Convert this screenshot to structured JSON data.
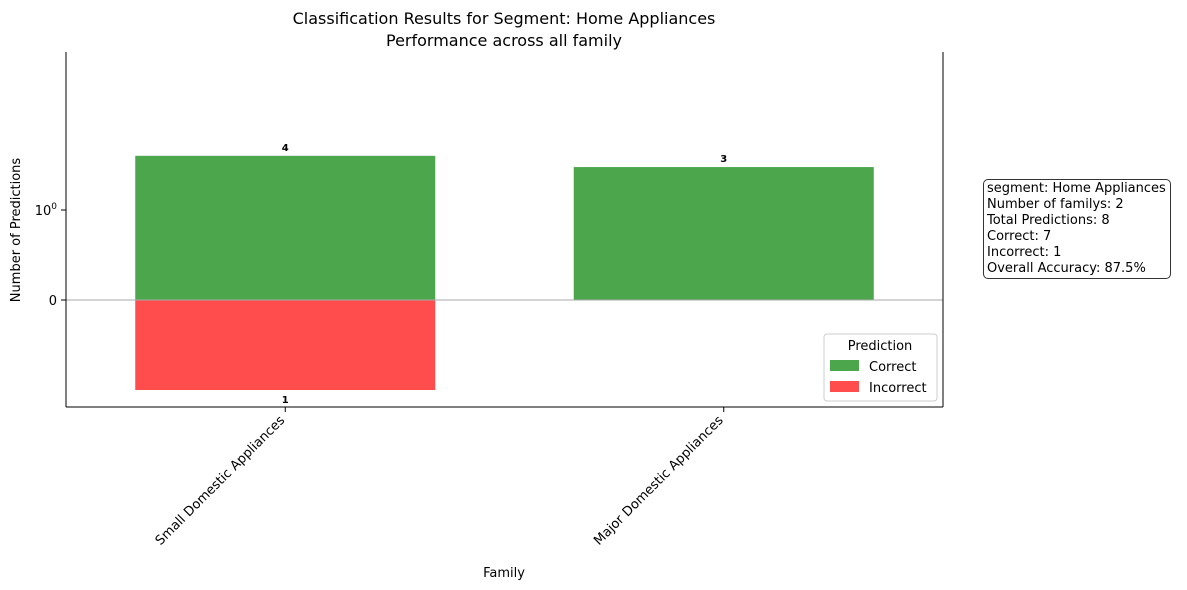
{
  "chart_data": {
    "type": "bar",
    "stacked_diverging": true,
    "title": "Classification Results for Segment: Home Appliances",
    "subtitle": "Performance across all family",
    "xlabel": "Family",
    "ylabel": "Number of Predictions",
    "yscale": "symlog",
    "yticks": [
      {
        "value": 0,
        "label": "0"
      },
      {
        "value": 1,
        "label": "10",
        "sup": "0"
      }
    ],
    "categories": [
      "Small Domestic Appliances",
      "Major Domestic Appliances"
    ],
    "series": [
      {
        "name": "Correct",
        "values": [
          4,
          3
        ],
        "direction": "up",
        "color": "#4ca64c"
      },
      {
        "name": "Incorrect",
        "values": [
          1,
          0
        ],
        "direction": "down",
        "color": "#ff4c4c"
      }
    ],
    "data_labels": {
      "correct": [
        "4",
        "3"
      ],
      "incorrect": [
        "1",
        ""
      ]
    },
    "legend": {
      "title": "Prediction",
      "position": "lower right"
    },
    "grid": false,
    "zero_line_color": "#aaaaaa"
  },
  "stats_box": {
    "lines": [
      "segment: Home Appliances",
      "Number of familys: 2",
      "Total Predictions: 8",
      "Correct: 7",
      "Incorrect: 1",
      "Overall Accuracy: 87.5%"
    ]
  }
}
